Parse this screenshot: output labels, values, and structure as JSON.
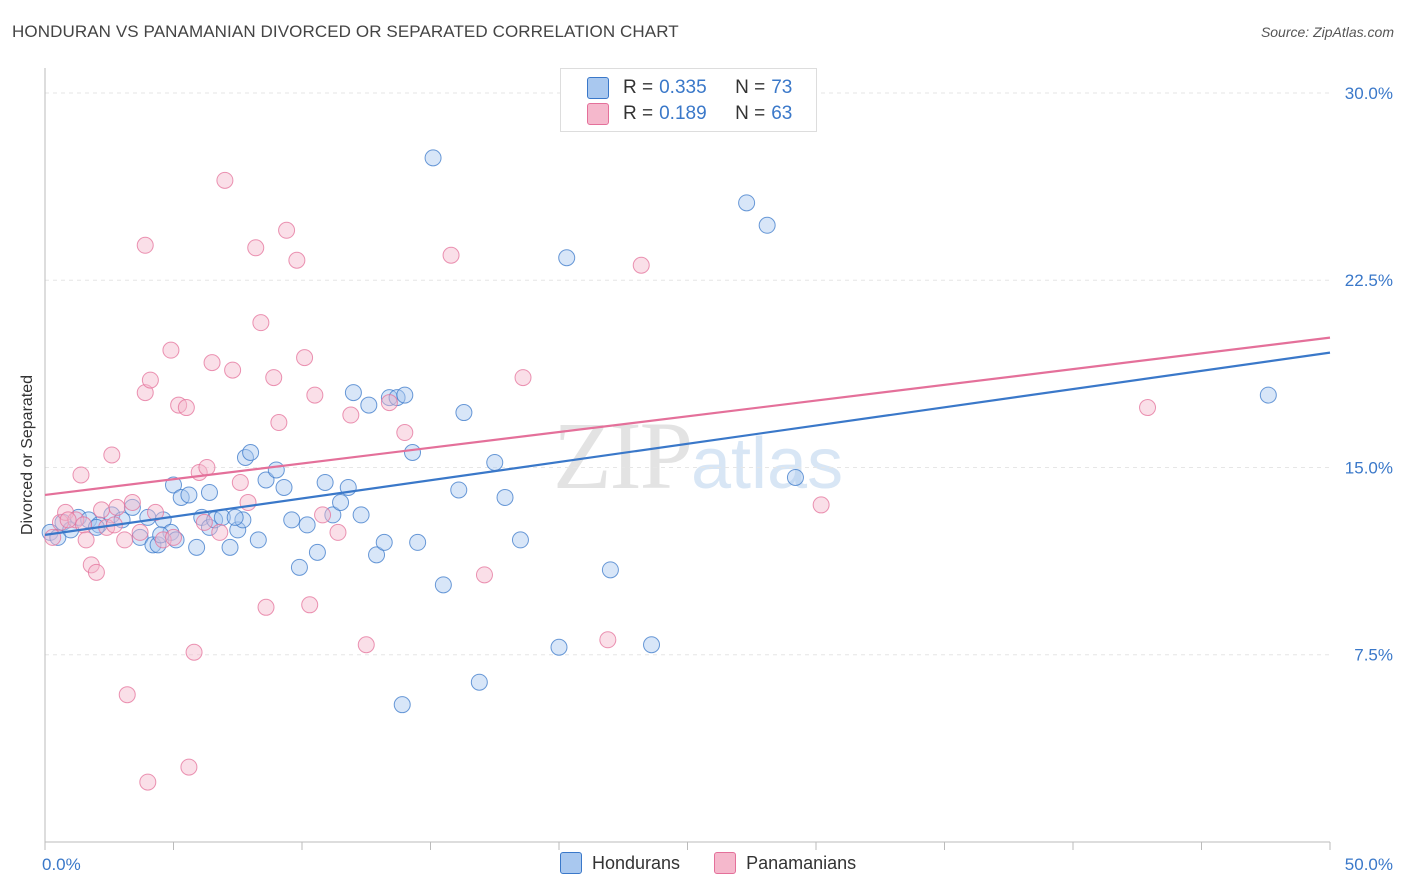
{
  "title": "HONDURAN VS PANAMANIAN DIVORCED OR SEPARATED CORRELATION CHART",
  "source": "Source: ZipAtlas.com",
  "watermark": {
    "zip": "ZIP",
    "atlas": "atlas"
  },
  "colors": {
    "blue": "#3a78c9",
    "blue_fill": "#a9c8ef",
    "pink": "#e4709a",
    "pink_fill": "#f5b8cc",
    "grid": "#e6e6e6"
  },
  "legend": {
    "rows": [
      {
        "r_label": "R =",
        "r_value": "0.335",
        "n_label": "N =",
        "n_value": "73"
      },
      {
        "r_label": "R =",
        "r_value": "0.189",
        "n_label": "N =",
        "n_value": "63"
      }
    ]
  },
  "chart_data": {
    "type": "scatter",
    "ylabel": "Divorced or Separated",
    "xlim": [
      0,
      50
    ],
    "ylim": [
      0,
      31
    ],
    "x_tick_labels": [
      "0.0%",
      "50.0%"
    ],
    "y_ticks": [
      {
        "value": 7.5,
        "label": "7.5%"
      },
      {
        "value": 15.0,
        "label": "15.0%"
      },
      {
        "value": 22.5,
        "label": "22.5%"
      },
      {
        "value": 30.0,
        "label": "30.0%"
      }
    ],
    "x_minor_ticks": [
      0,
      5,
      10,
      15,
      20,
      25,
      30,
      35,
      40,
      45,
      50
    ],
    "series": [
      {
        "name": "Hondurans",
        "color": "#3a78c9",
        "trend": {
          "x": [
            0,
            50
          ],
          "y": [
            12.3,
            19.6
          ]
        },
        "points": [
          [
            0.2,
            12.4
          ],
          [
            0.5,
            12.2
          ],
          [
            0.7,
            12.8
          ],
          [
            1.0,
            12.5
          ],
          [
            1.3,
            13.0
          ],
          [
            1.7,
            12.9
          ],
          [
            2.1,
            12.7
          ],
          [
            2.6,
            13.1
          ],
          [
            3.0,
            12.9
          ],
          [
            3.4,
            13.4
          ],
          [
            3.7,
            12.2
          ],
          [
            4.0,
            13.0
          ],
          [
            4.2,
            11.9
          ],
          [
            4.4,
            11.9
          ],
          [
            4.6,
            12.9
          ],
          [
            4.9,
            12.4
          ],
          [
            5.0,
            14.3
          ],
          [
            5.3,
            13.8
          ],
          [
            5.6,
            13.9
          ],
          [
            5.9,
            11.8
          ],
          [
            6.1,
            13.0
          ],
          [
            6.4,
            12.6
          ],
          [
            6.6,
            12.9
          ],
          [
            6.9,
            13.0
          ],
          [
            7.2,
            11.8
          ],
          [
            7.5,
            12.5
          ],
          [
            7.7,
            12.9
          ],
          [
            7.8,
            15.4
          ],
          [
            8.0,
            15.6
          ],
          [
            8.3,
            12.1
          ],
          [
            8.6,
            14.5
          ],
          [
            9.0,
            14.9
          ],
          [
            9.3,
            14.2
          ],
          [
            9.6,
            12.9
          ],
          [
            9.9,
            11.0
          ],
          [
            10.2,
            12.7
          ],
          [
            10.6,
            11.6
          ],
          [
            10.9,
            14.4
          ],
          [
            11.2,
            13.1
          ],
          [
            11.5,
            13.6
          ],
          [
            11.8,
            14.2
          ],
          [
            12.0,
            18.0
          ],
          [
            12.3,
            13.1
          ],
          [
            12.6,
            17.5
          ],
          [
            12.9,
            11.5
          ],
          [
            13.2,
            12.0
          ],
          [
            13.4,
            17.8
          ],
          [
            13.7,
            17.8
          ],
          [
            14.0,
            17.9
          ],
          [
            14.3,
            15.6
          ],
          [
            14.5,
            12.0
          ],
          [
            15.1,
            27.4
          ],
          [
            15.5,
            10.3
          ],
          [
            16.1,
            14.1
          ],
          [
            16.3,
            17.2
          ],
          [
            16.9,
            6.4
          ],
          [
            17.5,
            15.2
          ],
          [
            17.9,
            13.8
          ],
          [
            18.5,
            12.1
          ],
          [
            20.0,
            7.8
          ],
          [
            20.3,
            23.4
          ],
          [
            22.0,
            10.9
          ],
          [
            23.6,
            7.9
          ],
          [
            27.3,
            25.6
          ],
          [
            28.1,
            24.7
          ],
          [
            29.2,
            14.6
          ],
          [
            47.6,
            17.9
          ],
          [
            4.5,
            12.3
          ],
          [
            2.0,
            12.6
          ],
          [
            6.4,
            14.0
          ],
          [
            5.1,
            12.1
          ],
          [
            7.4,
            13.0
          ],
          [
            13.9,
            5.5
          ]
        ]
      },
      {
        "name": "Panamanians",
        "color": "#e4709a",
        "trend": {
          "x": [
            0,
            50
          ],
          "y": [
            13.9,
            20.2
          ]
        },
        "points": [
          [
            0.3,
            12.2
          ],
          [
            0.6,
            12.8
          ],
          [
            0.8,
            13.2
          ],
          [
            1.2,
            12.9
          ],
          [
            1.4,
            14.7
          ],
          [
            1.5,
            12.7
          ],
          [
            1.8,
            11.1
          ],
          [
            2.0,
            10.8
          ],
          [
            2.2,
            13.3
          ],
          [
            2.4,
            12.6
          ],
          [
            2.6,
            15.5
          ],
          [
            2.8,
            13.4
          ],
          [
            3.1,
            12.1
          ],
          [
            3.4,
            13.6
          ],
          [
            3.7,
            12.4
          ],
          [
            3.9,
            18.0
          ],
          [
            4.1,
            18.5
          ],
          [
            4.3,
            13.2
          ],
          [
            4.6,
            12.1
          ],
          [
            4.9,
            19.7
          ],
          [
            5.2,
            17.5
          ],
          [
            5.5,
            17.4
          ],
          [
            5.8,
            7.6
          ],
          [
            6.0,
            14.8
          ],
          [
            6.2,
            12.8
          ],
          [
            6.5,
            19.2
          ],
          [
            6.8,
            12.4
          ],
          [
            7.0,
            26.5
          ],
          [
            7.3,
            18.9
          ],
          [
            7.6,
            14.4
          ],
          [
            7.9,
            13.6
          ],
          [
            8.2,
            23.8
          ],
          [
            8.4,
            20.8
          ],
          [
            8.6,
            9.4
          ],
          [
            8.9,
            18.6
          ],
          [
            9.1,
            16.8
          ],
          [
            9.4,
            24.5
          ],
          [
            9.8,
            23.3
          ],
          [
            10.1,
            19.4
          ],
          [
            10.3,
            9.5
          ],
          [
            10.5,
            17.9
          ],
          [
            10.8,
            13.1
          ],
          [
            11.4,
            12.4
          ],
          [
            11.9,
            17.1
          ],
          [
            12.5,
            7.9
          ],
          [
            13.4,
            17.6
          ],
          [
            14.0,
            16.4
          ],
          [
            15.8,
            23.5
          ],
          [
            17.1,
            10.7
          ],
          [
            18.6,
            18.6
          ],
          [
            21.9,
            8.1
          ],
          [
            23.2,
            23.1
          ],
          [
            30.2,
            13.5
          ],
          [
            42.9,
            17.4
          ],
          [
            3.2,
            5.9
          ],
          [
            4.0,
            2.4
          ],
          [
            5.6,
            3.0
          ],
          [
            3.9,
            23.9
          ],
          [
            2.7,
            12.7
          ],
          [
            0.9,
            12.9
          ],
          [
            1.6,
            12.1
          ],
          [
            5.0,
            12.2
          ],
          [
            6.3,
            15.0
          ]
        ]
      }
    ]
  },
  "bottom_legend": [
    "Hondurans",
    "Panamanians"
  ]
}
